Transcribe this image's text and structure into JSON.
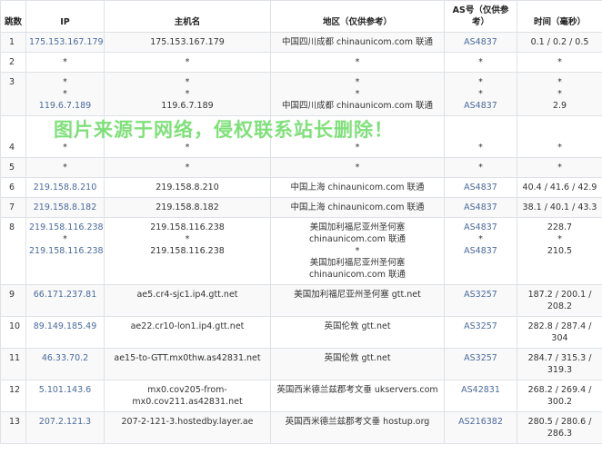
{
  "headers": {
    "hop": "跳数",
    "ip": "IP",
    "host": "主机名",
    "region": "地区（仅供参考）",
    "as": "AS号（仅供参考）",
    "time": "时间（毫秒）"
  },
  "watermark": "图片来源于网络，侵权联系站长删除！",
  "rows": [
    {
      "hop": "1",
      "ip": [
        "175.153.167.179"
      ],
      "host": [
        "175.153.167.179"
      ],
      "region": [
        "中国四川成都 chinaunicom.com 联通"
      ],
      "as": [
        "AS4837"
      ],
      "time": [
        "0.1 / 0.2 / 0.5"
      ]
    },
    {
      "hop": "2",
      "ip": [
        "*"
      ],
      "host": [
        "*"
      ],
      "region": [
        "*"
      ],
      "as": [
        "*"
      ],
      "time": [
        "*"
      ]
    },
    {
      "hop": "3",
      "ip": [
        "*",
        "*",
        "119.6.7.189"
      ],
      "host": [
        "*",
        "*",
        "119.6.7.189"
      ],
      "region": [
        "*",
        "*",
        "中国四川成都 chinaunicom.com 联通"
      ],
      "as": [
        "*",
        "*",
        "AS4837"
      ],
      "time": [
        "*",
        "*",
        "2.9"
      ]
    },
    {
      "hop": "4",
      "ip": [
        "*"
      ],
      "host": [
        "*"
      ],
      "region": [
        "*"
      ],
      "as": [
        "*"
      ],
      "time": [
        "*"
      ]
    },
    {
      "hop": "5",
      "ip": [
        "*"
      ],
      "host": [
        "*"
      ],
      "region": [
        "*"
      ],
      "as": [
        "*"
      ],
      "time": [
        "*"
      ]
    },
    {
      "hop": "6",
      "ip": [
        "219.158.8.210"
      ],
      "host": [
        "219.158.8.210"
      ],
      "region": [
        "中国上海 chinaunicom.com 联通"
      ],
      "as": [
        "AS4837"
      ],
      "time": [
        "40.4 / 41.6 / 42.9"
      ]
    },
    {
      "hop": "7",
      "ip": [
        "219.158.8.182"
      ],
      "host": [
        "219.158.8.182"
      ],
      "region": [
        "中国上海 chinaunicom.com 联通"
      ],
      "as": [
        "AS4837"
      ],
      "time": [
        "38.1 / 40.1 / 43.3"
      ]
    },
    {
      "hop": "8",
      "ip": [
        "219.158.116.238",
        "*",
        "219.158.116.238"
      ],
      "host": [
        "219.158.116.238",
        "*",
        "219.158.116.238"
      ],
      "region": [
        "美国加利福尼亚州圣何塞",
        "chinaunicom.com 联通",
        "*",
        "美国加利福尼亚州圣何塞",
        "chinaunicom.com 联通"
      ],
      "as": [
        "AS4837",
        "*",
        "AS4837"
      ],
      "time": [
        "228.7",
        "*",
        "210.5"
      ]
    },
    {
      "hop": "9",
      "ip": [
        "66.171.237.81"
      ],
      "host": [
        "ae5.cr4-sjc1.ip4.gtt.net"
      ],
      "region": [
        "美国加利福尼亚州圣何塞 gtt.net"
      ],
      "as": [
        "AS3257"
      ],
      "time": [
        "187.2 / 200.1 /",
        "208.2"
      ]
    },
    {
      "hop": "10",
      "ip": [
        "89.149.185.49"
      ],
      "host": [
        "ae22.cr10-lon1.ip4.gtt.net"
      ],
      "region": [
        "英国伦敦 gtt.net"
      ],
      "as": [
        "AS3257"
      ],
      "time": [
        "282.8 / 287.4 /",
        "304"
      ]
    },
    {
      "hop": "11",
      "ip": [
        "46.33.70.2"
      ],
      "host": [
        "ae15-to-GTT.mx0thw.as42831.net"
      ],
      "region": [
        "英国伦敦 gtt.net"
      ],
      "as": [
        "AS3257"
      ],
      "time": [
        "284.7 / 315.3 /",
        "319.3"
      ]
    },
    {
      "hop": "12",
      "ip": [
        "5.101.143.6"
      ],
      "host": [
        "mx0.cov205-from-",
        "mx0.cov211.as42831.net"
      ],
      "region": [
        "英国西米德兰兹郡考文垂 ukservers.com"
      ],
      "as": [
        "AS42831"
      ],
      "time": [
        "268.2 / 269.4 /",
        "300.2"
      ]
    },
    {
      "hop": "13",
      "ip": [
        "207.2.121.3"
      ],
      "host": [
        "207-2-121-3.hostedby.layer.ae"
      ],
      "region": [
        "英国西米德兰兹郡考文垂 hostup.org"
      ],
      "as": [
        "AS216382"
      ],
      "time": [
        "280.5 / 280.6 /",
        "286.3"
      ]
    }
  ]
}
